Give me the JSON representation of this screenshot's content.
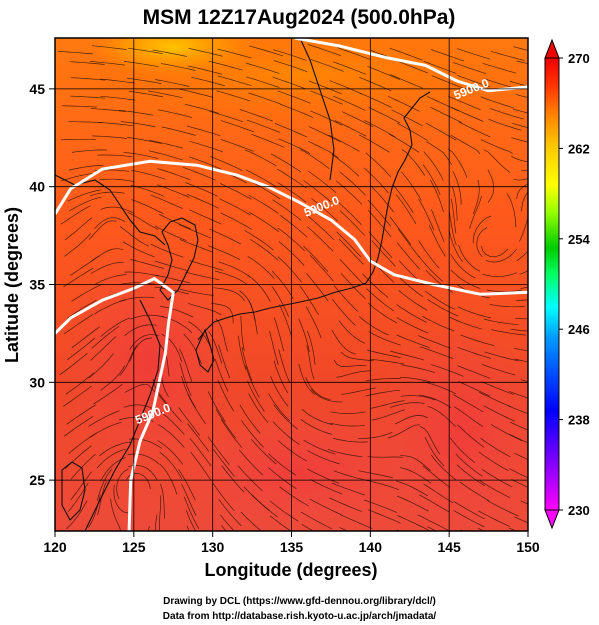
{
  "chart_data": {
    "type": "heatmap",
    "title": "MSM 12Z17Aug2024 (500.0hPa)",
    "xlabel": "Longitude (degrees)",
    "ylabel": "Latitude  (degrees)",
    "xlim": [
      120,
      150
    ],
    "ylim": [
      22.4,
      47.6
    ],
    "x_ticks": [
      120,
      125,
      130,
      135,
      140,
      145,
      150
    ],
    "y_ticks": [
      25,
      30,
      35,
      40,
      45
    ],
    "colorbar": {
      "min": 230,
      "max": 270,
      "ticks": [
        230,
        238,
        246,
        254,
        262,
        270
      ],
      "colors": [
        "#ff00ff",
        "#8800ff",
        "#0000ff",
        "#0099ff",
        "#00ffff",
        "#00ff66",
        "#00cc00",
        "#99ff00",
        "#ffff00",
        "#ffcc00",
        "#ff8800",
        "#ff3300",
        "#ee0000"
      ]
    },
    "contour_labels": [
      {
        "text": "5900.0",
        "lon": 146.5,
        "lat": 44.8
      },
      {
        "text": "5900.0",
        "lon": 137.0,
        "lat": 38.8
      },
      {
        "text": "5900.0",
        "lon": 126.3,
        "lat": 28.2
      }
    ],
    "contour_lines": [
      [
        [
          135.2,
          47.6
        ],
        [
          138,
          47.2
        ],
        [
          141,
          46.6
        ],
        [
          143.5,
          46.2
        ],
        [
          145.5,
          45.4
        ],
        [
          147.5,
          44.9
        ],
        [
          150,
          45.1
        ]
      ],
      [
        [
          120,
          38.6
        ],
        [
          121,
          39.9
        ],
        [
          123,
          40.9
        ],
        [
          126,
          41.3
        ],
        [
          129,
          41.1
        ],
        [
          131.5,
          40.6
        ],
        [
          133.5,
          40.0
        ],
        [
          135.5,
          39.2
        ],
        [
          137.5,
          38.3
        ],
        [
          139,
          37.3
        ],
        [
          140,
          36.2
        ],
        [
          141.5,
          35.5
        ],
        [
          144,
          35.0
        ],
        [
          147,
          34.5
        ],
        [
          150,
          34.6
        ]
      ],
      [
        [
          120,
          32.5
        ],
        [
          121,
          33.3
        ],
        [
          123,
          34.2
        ],
        [
          125,
          34.8
        ],
        [
          126.3,
          35.3
        ],
        [
          127.5,
          34.6
        ],
        [
          127.2,
          33.0
        ],
        [
          127.0,
          31.5
        ],
        [
          126.6,
          30.0
        ],
        [
          126.2,
          28.5
        ],
        [
          125.4,
          27.0
        ],
        [
          124.8,
          25.0
        ],
        [
          124.7,
          22.4
        ]
      ]
    ],
    "grid": true
  },
  "footer": {
    "line1": "Drawing by DCL (https://www.gfd-dennou.org/library/dcl/)",
    "line2": "Data from http://database.rish.kyoto-u.ac.jp/arch/jmadata/"
  }
}
